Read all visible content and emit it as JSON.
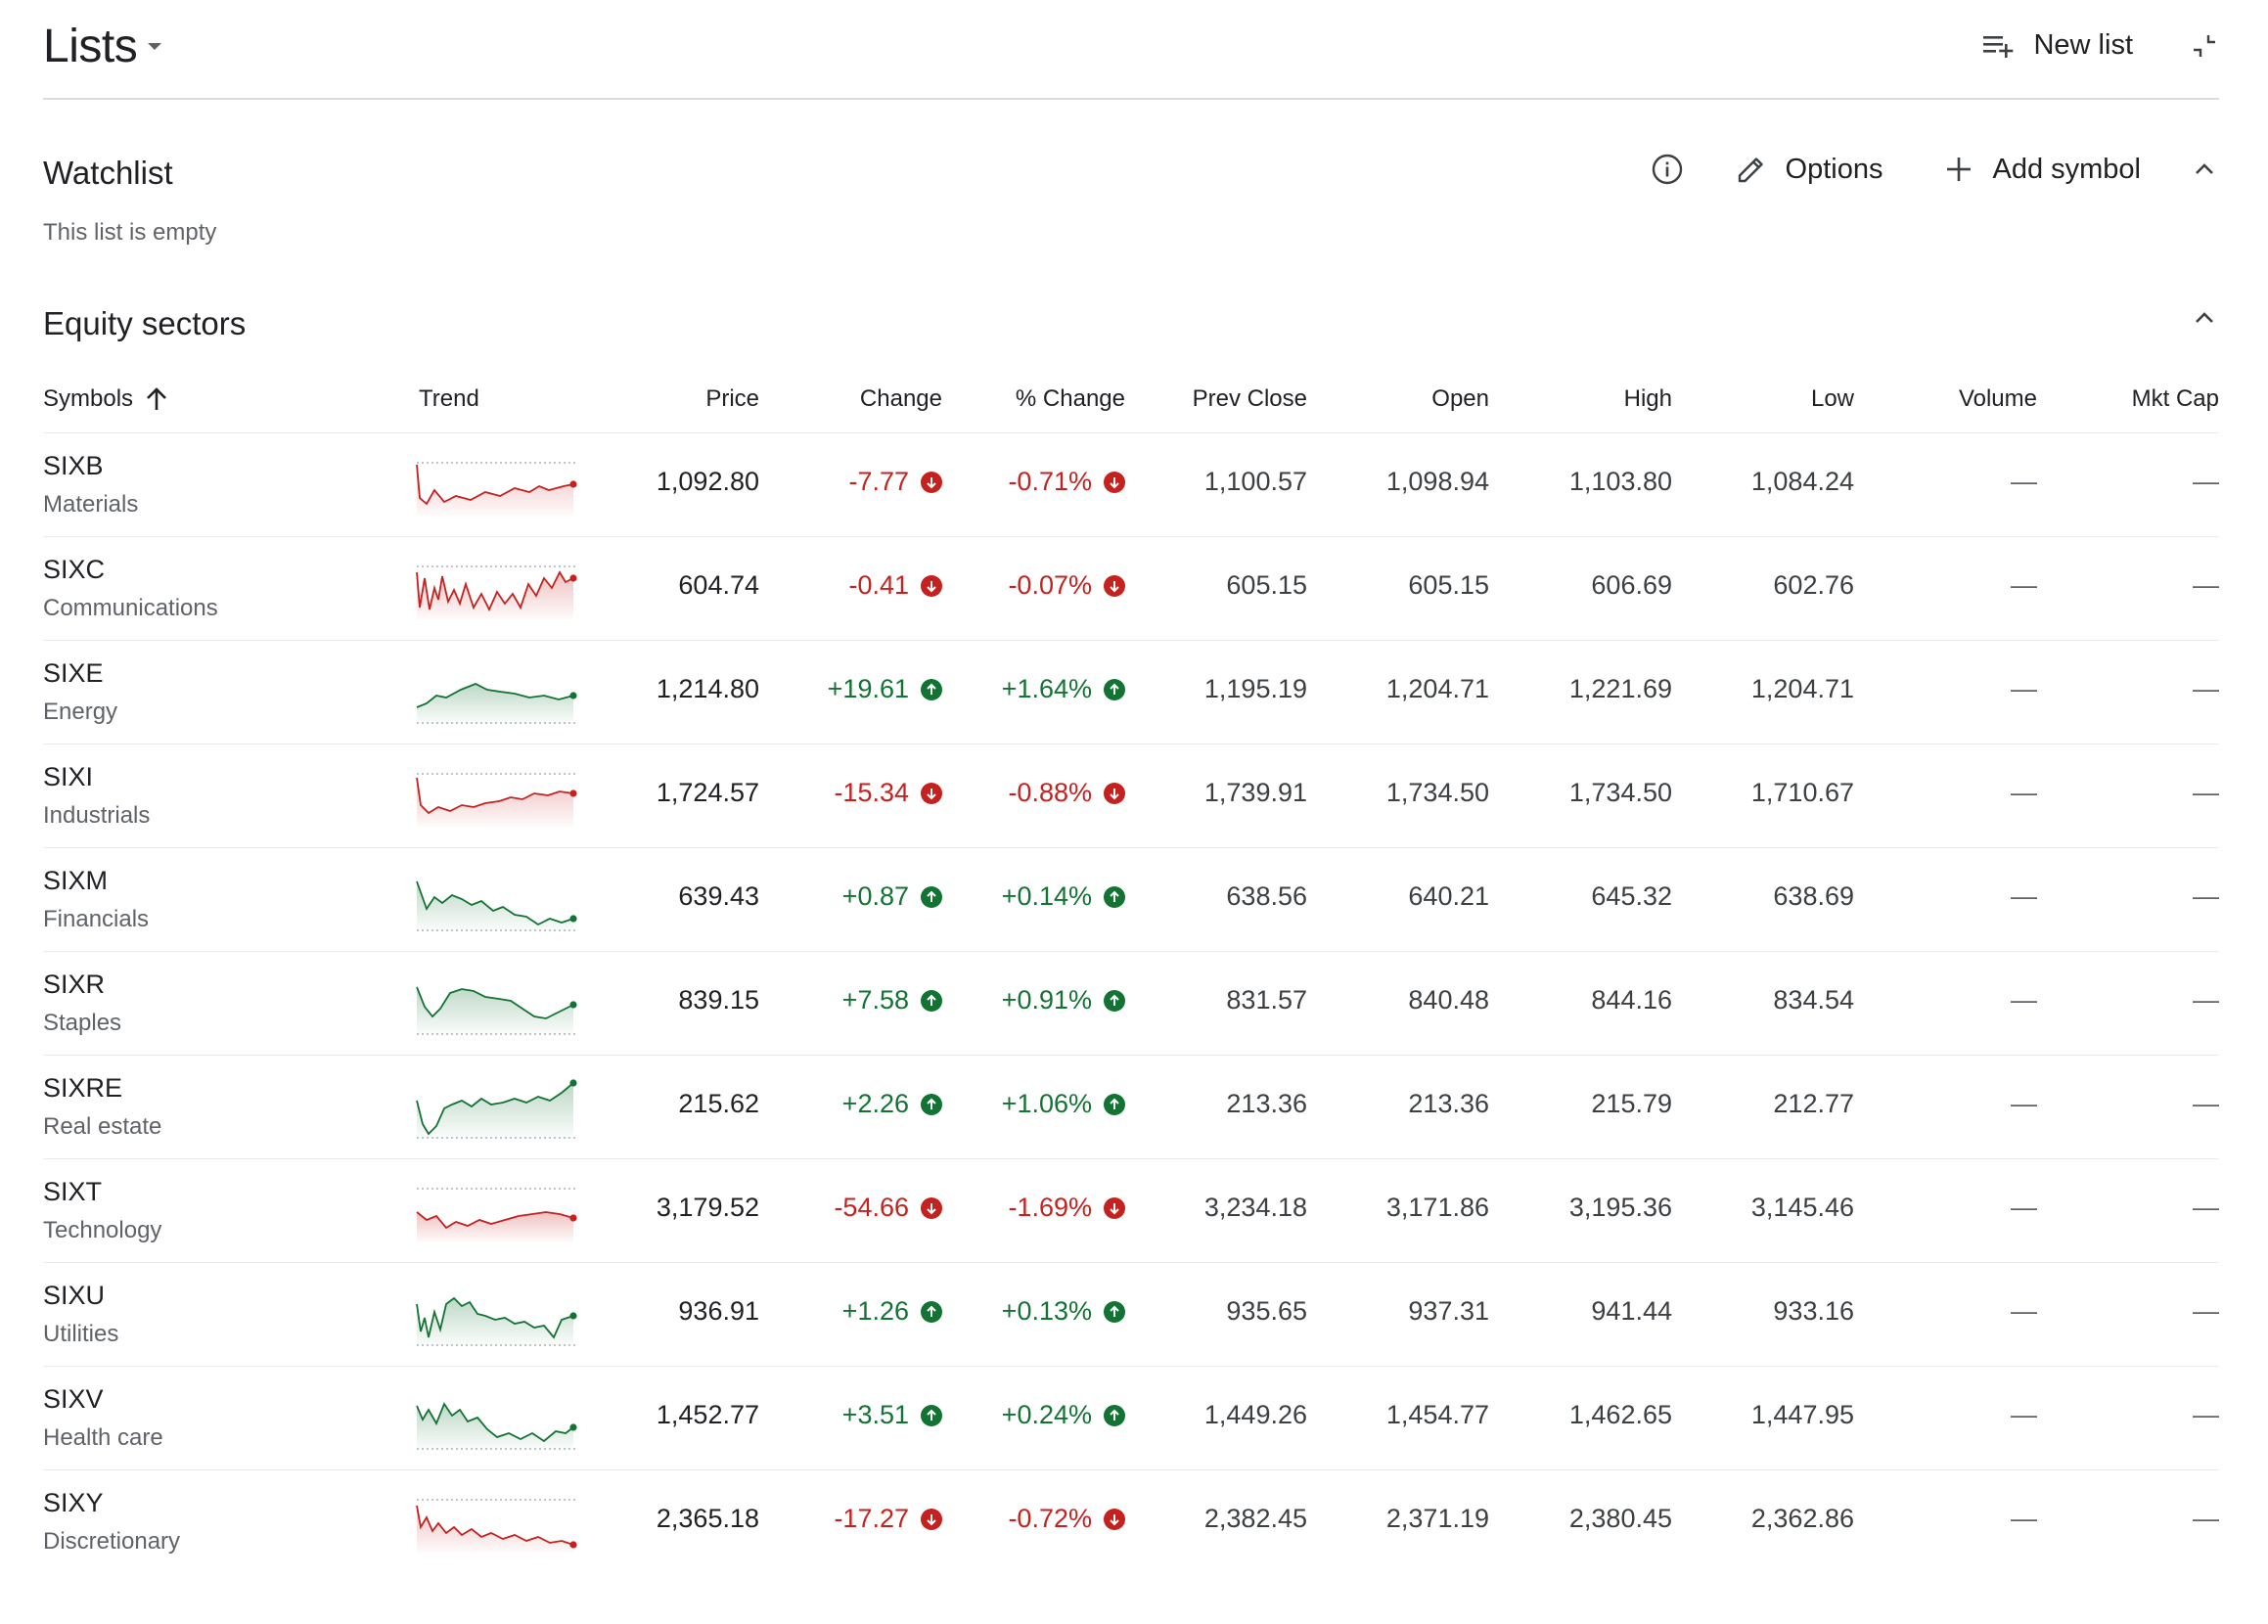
{
  "header": {
    "title": "Lists",
    "new_list_label": "New list"
  },
  "watchlist": {
    "title": "Watchlist",
    "options_label": "Options",
    "add_symbol_label": "Add symbol",
    "empty_text": "This list is empty"
  },
  "equity": {
    "title": "Equity sectors",
    "columns": {
      "symbols": "Symbols",
      "trend": "Trend",
      "price": "Price",
      "change": "Change",
      "pct_change": "% Change",
      "prev_close": "Prev Close",
      "open": "Open",
      "high": "High",
      "low": "Low",
      "volume": "Volume",
      "mkt_cap": "Mkt Cap"
    },
    "colors": {
      "negative": "#c5221f",
      "positive": "#137333"
    },
    "rows": [
      {
        "symbol": "SIXB",
        "sector": "Materials",
        "price": "1,092.80",
        "change": "-7.77",
        "pct": "-0.71%",
        "dir": "down",
        "prev": "1,100.57",
        "open": "1,098.94",
        "high": "1,103.80",
        "low": "1,084.24",
        "volume": "—",
        "mktcap": "—"
      },
      {
        "symbol": "SIXC",
        "sector": "Communications",
        "price": "604.74",
        "change": "-0.41",
        "pct": "-0.07%",
        "dir": "down",
        "prev": "605.15",
        "open": "605.15",
        "high": "606.69",
        "low": "602.76",
        "volume": "—",
        "mktcap": "—"
      },
      {
        "symbol": "SIXE",
        "sector": "Energy",
        "price": "1,214.80",
        "change": "+19.61",
        "pct": "+1.64%",
        "dir": "up",
        "prev": "1,195.19",
        "open": "1,204.71",
        "high": "1,221.69",
        "low": "1,204.71",
        "volume": "—",
        "mktcap": "—"
      },
      {
        "symbol": "SIXI",
        "sector": "Industrials",
        "price": "1,724.57",
        "change": "-15.34",
        "pct": "-0.88%",
        "dir": "down",
        "prev": "1,739.91",
        "open": "1,734.50",
        "high": "1,734.50",
        "low": "1,710.67",
        "volume": "—",
        "mktcap": "—"
      },
      {
        "symbol": "SIXM",
        "sector": "Financials",
        "price": "639.43",
        "change": "+0.87",
        "pct": "+0.14%",
        "dir": "up",
        "prev": "638.56",
        "open": "640.21",
        "high": "645.32",
        "low": "638.69",
        "volume": "—",
        "mktcap": "—"
      },
      {
        "symbol": "SIXR",
        "sector": "Staples",
        "price": "839.15",
        "change": "+7.58",
        "pct": "+0.91%",
        "dir": "up",
        "prev": "831.57",
        "open": "840.48",
        "high": "844.16",
        "low": "834.54",
        "volume": "—",
        "mktcap": "—"
      },
      {
        "symbol": "SIXRE",
        "sector": "Real estate",
        "price": "215.62",
        "change": "+2.26",
        "pct": "+1.06%",
        "dir": "up",
        "prev": "213.36",
        "open": "213.36",
        "high": "215.79",
        "low": "212.77",
        "volume": "—",
        "mktcap": "—"
      },
      {
        "symbol": "SIXT",
        "sector": "Technology",
        "price": "3,179.52",
        "change": "-54.66",
        "pct": "-1.69%",
        "dir": "down",
        "prev": "3,234.18",
        "open": "3,171.86",
        "high": "3,195.36",
        "low": "3,145.46",
        "volume": "—",
        "mktcap": "—"
      },
      {
        "symbol": "SIXU",
        "sector": "Utilities",
        "price": "936.91",
        "change": "+1.26",
        "pct": "+0.13%",
        "dir": "up",
        "prev": "935.65",
        "open": "937.31",
        "high": "941.44",
        "low": "933.16",
        "volume": "—",
        "mktcap": "—"
      },
      {
        "symbol": "SIXV",
        "sector": "Health care",
        "price": "1,452.77",
        "change": "+3.51",
        "pct": "+0.24%",
        "dir": "up",
        "prev": "1,449.26",
        "open": "1,454.77",
        "high": "1,462.65",
        "low": "1,447.95",
        "volume": "—",
        "mktcap": "—"
      },
      {
        "symbol": "SIXY",
        "sector": "Discretionary",
        "price": "2,365.18",
        "change": "-17.27",
        "pct": "-0.72%",
        "dir": "down",
        "prev": "2,382.45",
        "open": "2,371.19",
        "high": "2,380.45",
        "low": "2,362.86",
        "volume": "—",
        "mktcap": "—"
      }
    ]
  }
}
